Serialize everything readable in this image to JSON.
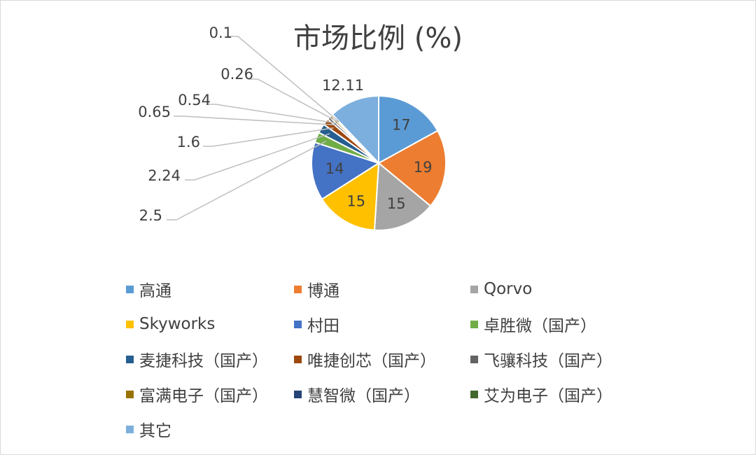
{
  "chart_data": {
    "type": "pie",
    "title": "市场比例 (%)",
    "labels": [
      "高通",
      "博通",
      "Qorvo",
      "Skyworks",
      "村田",
      "卓胜微（国产）",
      "麦捷科技（国产）",
      "唯捷创芯（国产）",
      "飞骧科技（国产）",
      "富满电子（国产）",
      "慧智微（国产）",
      "艾为电子（国产）",
      "其它"
    ],
    "values": [
      17,
      19,
      15,
      15,
      14,
      2.5,
      2.24,
      1.6,
      0.65,
      0.54,
      0.26,
      0.1,
      12.11
    ],
    "value_labels": [
      "17",
      "19",
      "15",
      "15",
      "14",
      "2.5",
      "2.24",
      "1.6",
      "0.65",
      "0.54",
      "0.26",
      "0.1",
      "12.11"
    ],
    "colors": [
      "#5b9bd5",
      "#ed7d31",
      "#a5a5a5",
      "#ffc000",
      "#4472c4",
      "#70ad47",
      "#255e91",
      "#9e480e",
      "#636363",
      "#997300",
      "#264478",
      "#43682b",
      "#7cafdd"
    ],
    "legend_position": "bottom"
  }
}
